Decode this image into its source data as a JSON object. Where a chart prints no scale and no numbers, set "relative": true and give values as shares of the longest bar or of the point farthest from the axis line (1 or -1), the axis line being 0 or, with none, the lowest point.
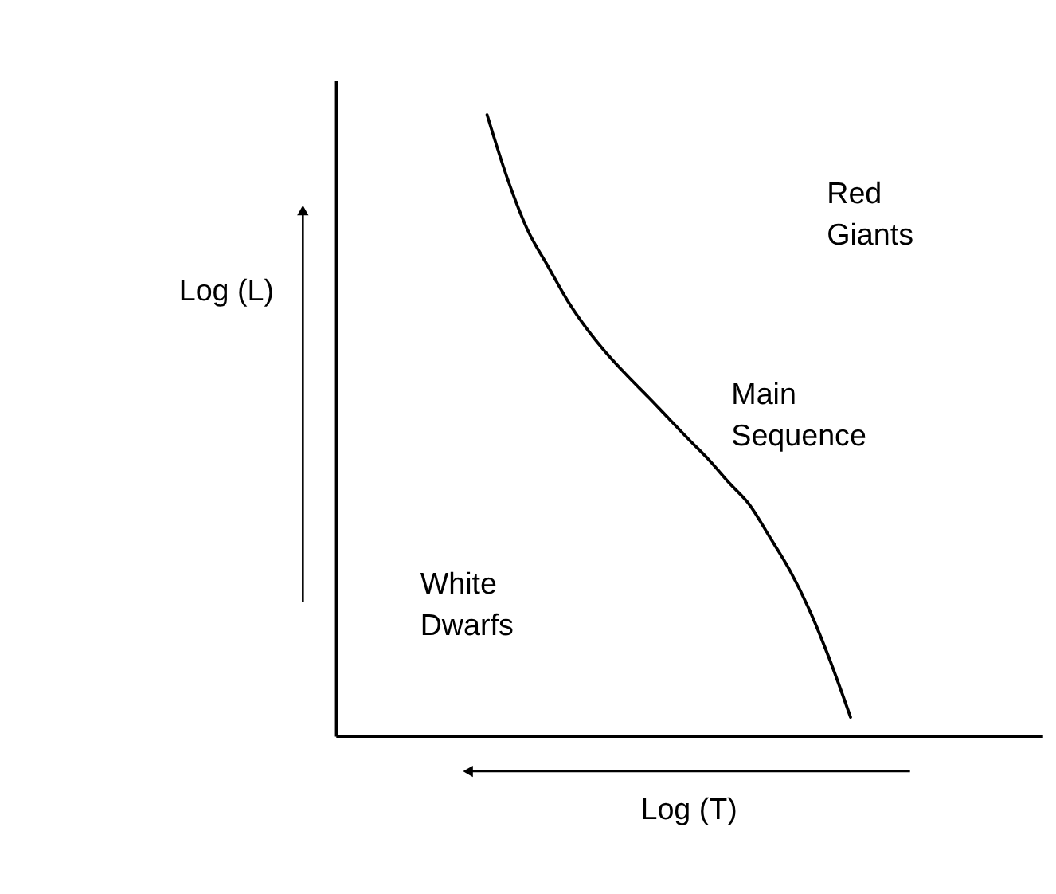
{
  "chart_data": {
    "type": "line",
    "relative": true,
    "xlabel": "Log (T)",
    "ylabel": "Log (L)",
    "categories": [
      null,
      null,
      null,
      null,
      null,
      null,
      null,
      null,
      null,
      null,
      null,
      null,
      null,
      null,
      null,
      null,
      null,
      null,
      null,
      null,
      null,
      null,
      null,
      null,
      null,
      null,
      null,
      null,
      null,
      null,
      null,
      null,
      null,
      null,
      null
    ],
    "series": [
      {
        "color": "#000000",
        "values": [
          null,
          null,
          null,
          null,
          null,
          null,
          null,
          1.0,
          0.898,
          0.815,
          0.757,
          0.7,
          0.653,
          0.613,
          0.578,
          0.545,
          0.511,
          0.477,
          0.444,
          0.407,
          0.372,
          0.32,
          0.266,
          0.2,
          0.12,
          0.03,
          null,
          null,
          null,
          null,
          null,
          null,
          null,
          null,
          null
        ]
      }
    ],
    "annotations": [
      "Red\nGiants",
      "Main\nSequence",
      "White\nDwarfs"
    ],
    "marker": "none",
    "line_style": "solid",
    "grid": false
  }
}
